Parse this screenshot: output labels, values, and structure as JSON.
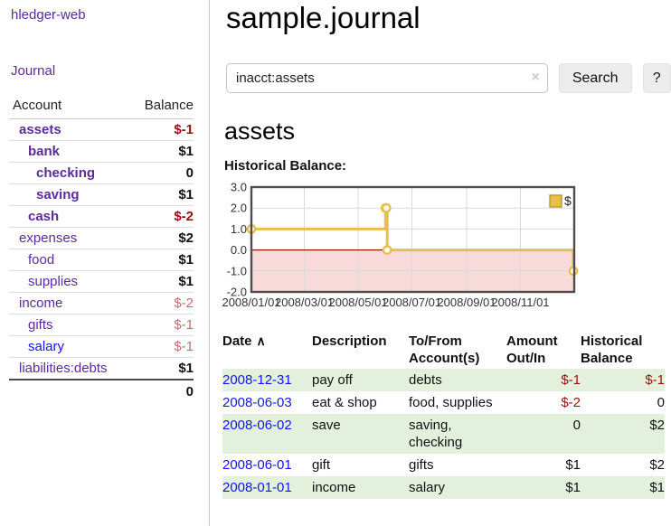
{
  "brand": "hledger-web",
  "nav": {
    "journal": "Journal"
  },
  "colors": {
    "link_purple": "#5b2a9d",
    "link_blue": "#1414ee",
    "negative_strong": "#9c0f0d",
    "negative_soft": "#c0716d",
    "table_negative": "#97120f",
    "row_stripe_green": "#e3f0dc",
    "chart_gold": "#e5c04a"
  },
  "sidebar": {
    "header": {
      "account": "Account",
      "balance": "Balance"
    },
    "accounts": [
      {
        "name": "assets",
        "balance": "$-1"
      },
      {
        "name": "bank",
        "balance": "$1"
      },
      {
        "name": "checking",
        "balance": "0"
      },
      {
        "name": "saving",
        "balance": "$1"
      },
      {
        "name": "cash",
        "balance": "$-2"
      },
      {
        "name": "expenses",
        "balance": "$2"
      },
      {
        "name": "food",
        "balance": "$1"
      },
      {
        "name": "supplies",
        "balance": "$1"
      },
      {
        "name": "income",
        "balance": "$-2"
      },
      {
        "name": "gifts",
        "balance": "$-1"
      },
      {
        "name": "salary",
        "balance": "$-1"
      },
      {
        "name": "liabilities:debts",
        "balance": "$1"
      }
    ],
    "total": "0"
  },
  "main": {
    "title": "sample.journal",
    "search": {
      "value": "inacct:assets",
      "clear_icon": "×",
      "search_button": "Search",
      "help_button": "?"
    },
    "account_title": "assets",
    "chart_label": "Historical Balance:"
  },
  "chart_data": {
    "type": "line",
    "step": true,
    "title": "Historical Balance:",
    "series": [
      {
        "name": "$",
        "color": "#e5c04a",
        "marker": "open-circle",
        "points": [
          {
            "date": "2008-01-01",
            "value": 1
          },
          {
            "date": "2008-06-01",
            "value": 2
          },
          {
            "date": "2008-06-02",
            "value": 2
          },
          {
            "date": "2008-06-03",
            "value": 0
          },
          {
            "date": "2008-12-31",
            "value": -1
          }
        ]
      }
    ],
    "x_range": [
      "2008-01-01",
      "2009-01-01"
    ],
    "x_ticks": [
      "2008/01/01",
      "2008/03/01",
      "2008/05/01",
      "2008/07/01",
      "2008/09/01",
      "2008/11/01"
    ],
    "y_ticks": [
      "3.0",
      "2.0",
      "1.0",
      "0.0",
      "-1.0",
      "-2.0"
    ],
    "ylim": [
      -2,
      3
    ],
    "grid": true,
    "legend_position": "top-right",
    "negative_region_color": "#f9dada",
    "zero_line_color": "#8c1a12",
    "grid_color": "#d9d9d9",
    "border_color": "#4d4d4d"
  },
  "register": {
    "sort_icon": "∧",
    "columns": {
      "date": "Date",
      "description": "Description",
      "accounts": "To/From Account(s)",
      "amount": "Amount Out/In",
      "balance": "Historical Balance"
    },
    "rows": [
      {
        "date": "2008-12-31",
        "description": "pay off",
        "accounts": "debts",
        "amount": "$-1",
        "balance": "$-1"
      },
      {
        "date": "2008-06-03",
        "description": "eat & shop",
        "accounts": "food, supplies",
        "amount": "$-2",
        "balance": "0"
      },
      {
        "date": "2008-06-02",
        "description": "save",
        "accounts": "saving, checking",
        "amount": "0",
        "balance": "$2"
      },
      {
        "date": "2008-06-01",
        "description": "gift",
        "accounts": "gifts",
        "amount": "$1",
        "balance": "$2"
      },
      {
        "date": "2008-01-01",
        "description": "income",
        "accounts": "salary",
        "amount": "$1",
        "balance": "$1"
      }
    ]
  }
}
